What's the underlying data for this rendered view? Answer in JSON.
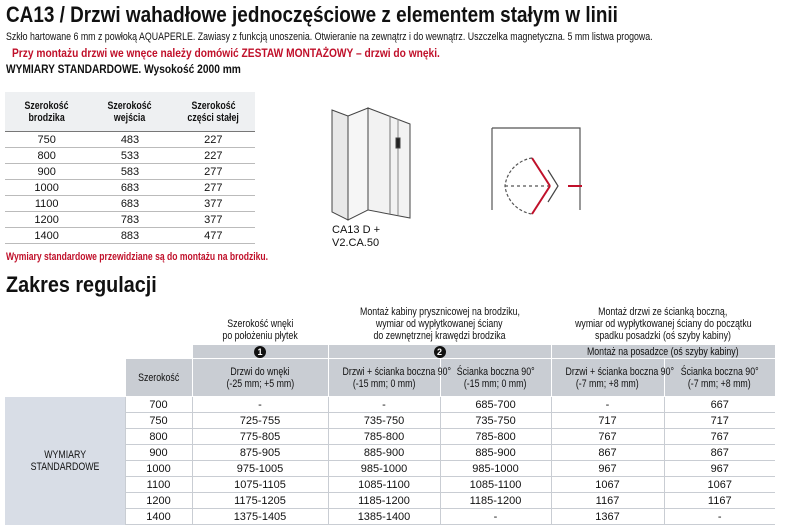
{
  "header": {
    "title": "CA13 / Drzwi wahadłowe jednoczęściowe z elementem stałym w linii",
    "description": "Szkło hartowane 6 mm z powłoką AQUAPERLE. Zawiasy z funkcją unoszenia. Otwieranie na zewnątrz i do wewnątrz. Uszczelka magnetyczna. 5 mm listwa progowa.",
    "warning": "Przy montażu drzwi we wnęce należy domówić ZESTAW MONTAŻOWY – drzwi do wnęki."
  },
  "standard_table": {
    "caption": "WYMIARY STANDARDOWE. Wysokość 2000 mm",
    "columns": [
      [
        "Szerokość",
        "brodzika"
      ],
      [
        "Szerokość",
        "wejścia"
      ],
      [
        "Szerokość",
        "części stałej"
      ]
    ],
    "rows": [
      [
        "750",
        "483",
        "227"
      ],
      [
        "800",
        "533",
        "227"
      ],
      [
        "900",
        "583",
        "277"
      ],
      [
        "1000",
        "683",
        "277"
      ],
      [
        "1100",
        "683",
        "377"
      ],
      [
        "1200",
        "783",
        "377"
      ],
      [
        "1400",
        "883",
        "477"
      ]
    ],
    "note": "Wymiary standardowe przewidziane są do montażu na brodziku."
  },
  "diagram": {
    "label_lines": [
      "CA13 D +",
      "V2.CA.50"
    ]
  },
  "adjustment_table": {
    "title": "Zakres regulacji",
    "groups": [
      {
        "lines": [
          "Szerokość wnęki",
          "po położeniu płytek"
        ],
        "marker": "1"
      },
      {
        "lines": [
          "Montaż kabiny prysznicowej na brodziku,",
          "wymiar od wypłytkowanej ściany",
          "do zewnętrznej krawędzi brodzika"
        ],
        "marker": "2"
      },
      {
        "lines": [
          "Montaż drzwi ze ścianką boczną,",
          "wymiar od wypłytkowanej ściany do początku",
          "spadku posadzki (oś szyby kabiny)"
        ],
        "subheader": "Montaż na posadzce (oś szyby kabiny)"
      }
    ],
    "columns": [
      [
        "Szerokość"
      ],
      [
        "Drzwi do wnęki",
        "(-25 mm; +5 mm)"
      ],
      [
        "Drzwi + ścianka boczna 90°",
        "(-15 mm; 0 mm)"
      ],
      [
        "Ścianka boczna 90°",
        "(-15 mm; 0 mm)"
      ],
      [
        "Drzwi + ścianka boczna 90°",
        "(-7 mm; +8 mm)"
      ],
      [
        "Ścianka boczna 90°",
        "(-7 mm; +8 mm)"
      ]
    ],
    "row_group_label": [
      "WYMIARY",
      "STANDARDOWE"
    ],
    "rows": [
      [
        "700",
        "-",
        "-",
        "685-700",
        "-",
        "667"
      ],
      [
        "750",
        "725-755",
        "735-750",
        "735-750",
        "717",
        "717"
      ],
      [
        "800",
        "775-805",
        "785-800",
        "785-800",
        "767",
        "767"
      ],
      [
        "900",
        "875-905",
        "885-900",
        "885-900",
        "867",
        "867"
      ],
      [
        "1000",
        "975-1005",
        "985-1000",
        "985-1000",
        "967",
        "967"
      ],
      [
        "1100",
        "1075-1105",
        "1085-1100",
        "1085-1100",
        "1067",
        "1067"
      ],
      [
        "1200",
        "1175-1205",
        "1185-1200",
        "1185-1200",
        "1167",
        "1167"
      ],
      [
        "1400",
        "1375-1405",
        "1385-1400",
        "-",
        "1367",
        "-"
      ]
    ]
  }
}
